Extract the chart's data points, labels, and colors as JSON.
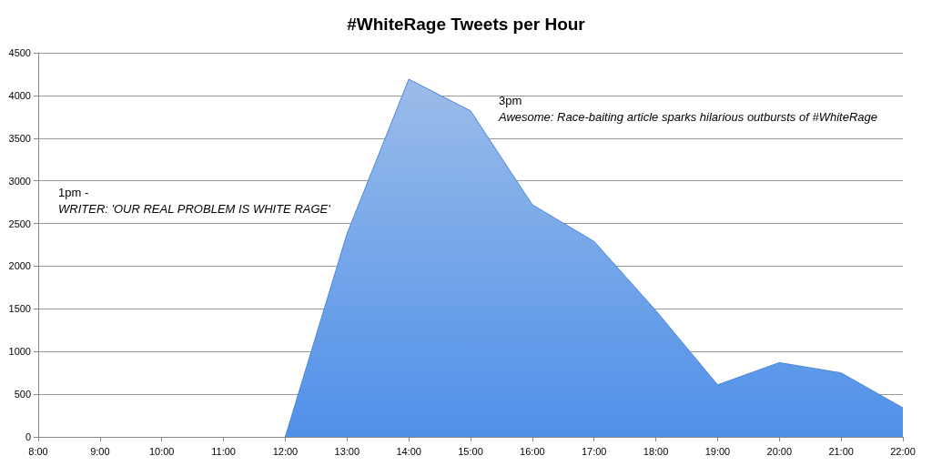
{
  "chart_data": {
    "type": "area",
    "title": "#WhiteRage Tweets per Hour",
    "x": [
      12,
      13,
      14,
      15,
      16,
      17,
      18,
      19,
      20,
      21,
      22
    ],
    "series": [
      {
        "color": "#4a86d8",
        "values": [
          0,
          2380,
          4190,
          3820,
          2720,
          2290,
          1480,
          610,
          870,
          750,
          340
        ]
      }
    ],
    "xlim": [
      8,
      22
    ],
    "xticks": [
      {
        "value": 8,
        "label": "8:00"
      },
      {
        "value": 9,
        "label": "9:00"
      },
      {
        "value": 10,
        "label": "10:00"
      },
      {
        "value": 11,
        "label": "11:00"
      },
      {
        "value": 12,
        "label": "12:00"
      },
      {
        "value": 13,
        "label": "13:00"
      },
      {
        "value": 14,
        "label": "14:00"
      },
      {
        "value": 15,
        "label": "15:00"
      },
      {
        "value": 16,
        "label": "16:00"
      },
      {
        "value": 17,
        "label": "17:00"
      },
      {
        "value": 18,
        "label": "18:00"
      },
      {
        "value": 19,
        "label": "19:00"
      },
      {
        "value": 20,
        "label": "20:00"
      },
      {
        "value": 21,
        "label": "21:00"
      },
      {
        "value": 22,
        "label": "22:00"
      }
    ],
    "ylim": [
      0,
      4500
    ],
    "yticks": [
      0,
      500,
      1000,
      1500,
      2000,
      2500,
      3000,
      3500,
      4000,
      4500
    ],
    "grid": "y",
    "marker": "none",
    "annotations": [
      "1pm -",
      "WRITER: 'OUR REAL PROBLEM IS WHITE RAGE'",
      "3pm",
      "Awesome: Race-baiting article sparks hilarious outbursts of #WhiteRage"
    ]
  }
}
